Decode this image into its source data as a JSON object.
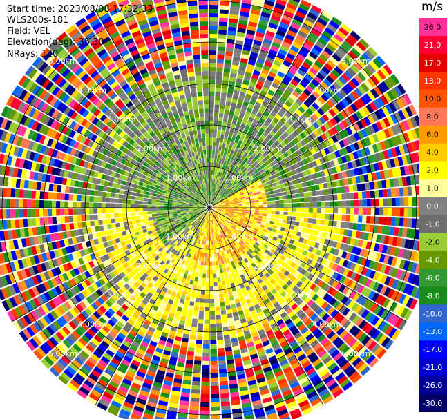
{
  "header": {
    "start_time": "Start time: 2023/08/08 17:32:33",
    "station": "WLS200s-181",
    "field": "Field: VEL",
    "elevation": "Elevation(deg): 35.30",
    "nrays": "NRays: 120"
  },
  "colorbar": {
    "unit": "m/s",
    "bins": [
      {
        "label": "26.0",
        "color": "#ff3399"
      },
      {
        "label": "21.0",
        "color": "#ff0033"
      },
      {
        "label": "17.0",
        "color": "#e60000"
      },
      {
        "label": "13.0",
        "color": "#ff3300"
      },
      {
        "label": "10.0",
        "color": "#ff5500"
      },
      {
        "label": "8.0",
        "color": "#ff7755"
      },
      {
        "label": "6.0",
        "color": "#ff9900"
      },
      {
        "label": "4.0",
        "color": "#ffcc00"
      },
      {
        "label": "2.0",
        "color": "#ffff00"
      },
      {
        "label": "1.0",
        "color": "#ffff99"
      },
      {
        "label": "0.0",
        "color": "#808080"
      },
      {
        "label": "-1.0",
        "color": "#6e6e6e"
      },
      {
        "label": "-2.0",
        "color": "#99cc33"
      },
      {
        "label": "-4.0",
        "color": "#669900"
      },
      {
        "label": "-6.0",
        "color": "#339933"
      },
      {
        "label": "-8.0",
        "color": "#1a8c1a"
      },
      {
        "label": "-10.0",
        "color": "#3366cc"
      },
      {
        "label": "-13.0",
        "color": "#0066ff"
      },
      {
        "label": "-17.0",
        "color": "#0000ff"
      },
      {
        "label": "-21.0",
        "color": "#0000cc"
      },
      {
        "label": "-26.0",
        "color": "#000099"
      },
      {
        "label": "-30.0",
        "color": "#000066"
      }
    ]
  },
  "chart_data": {
    "type": "heatmap",
    "projection": "polar PPI",
    "nrays": 120,
    "range_rings_km": [
      1,
      2,
      3,
      4,
      5
    ],
    "range_labels": [
      "1.00km",
      "2.00km",
      "3.00km",
      "4.00km",
      "5.00km"
    ],
    "max_range_km": 5.5,
    "spoke_azimuths_deg": [
      0,
      30,
      60,
      90,
      120,
      150,
      180,
      210,
      240,
      270,
      300,
      330
    ],
    "velocity_field": [
      {
        "range_km": [
          0,
          1.5
        ],
        "azimuth_deg": [
          210,
          360
        ],
        "velocity_ms": [
          -8,
          -1
        ],
        "note_color": "green"
      },
      {
        "range_km": [
          0,
          1.5
        ],
        "azimuth_deg": [
          0,
          60
        ],
        "velocity_ms": [
          -6,
          -1
        ],
        "note_color": "green"
      },
      {
        "range_km": [
          0,
          1.5
        ],
        "azimuth_deg": [
          60,
          210
        ],
        "velocity_ms": [
          2,
          10
        ],
        "note_color": "yellow/orange"
      },
      {
        "range_km": [
          1.5,
          2.5
        ],
        "azimuth_deg": [
          90,
          270
        ],
        "velocity_ms": [
          2,
          6
        ],
        "note_color": "yellow"
      },
      {
        "range_km": [
          1.5,
          3.0
        ],
        "azimuth_deg": [
          270,
          450
        ],
        "velocity_ms": [
          -4,
          0
        ],
        "note_color": "green/gray"
      },
      {
        "range_km": [
          3.0,
          5.5
        ],
        "azimuth_deg": [
          0,
          360
        ],
        "velocity_ms": [
          -30,
          26
        ],
        "note_color": "noise"
      }
    ],
    "colorbar_ticks_ms": [
      26.0,
      21.0,
      17.0,
      13.0,
      10.0,
      8.0,
      6.0,
      4.0,
      2.0,
      1.0,
      0.0,
      -1.0,
      -2.0,
      -4.0,
      -6.0,
      -8.0,
      -10.0,
      -13.0,
      -17.0,
      -21.0,
      -26.0,
      -30.0
    ],
    "colorbar_unit": "m/s"
  }
}
